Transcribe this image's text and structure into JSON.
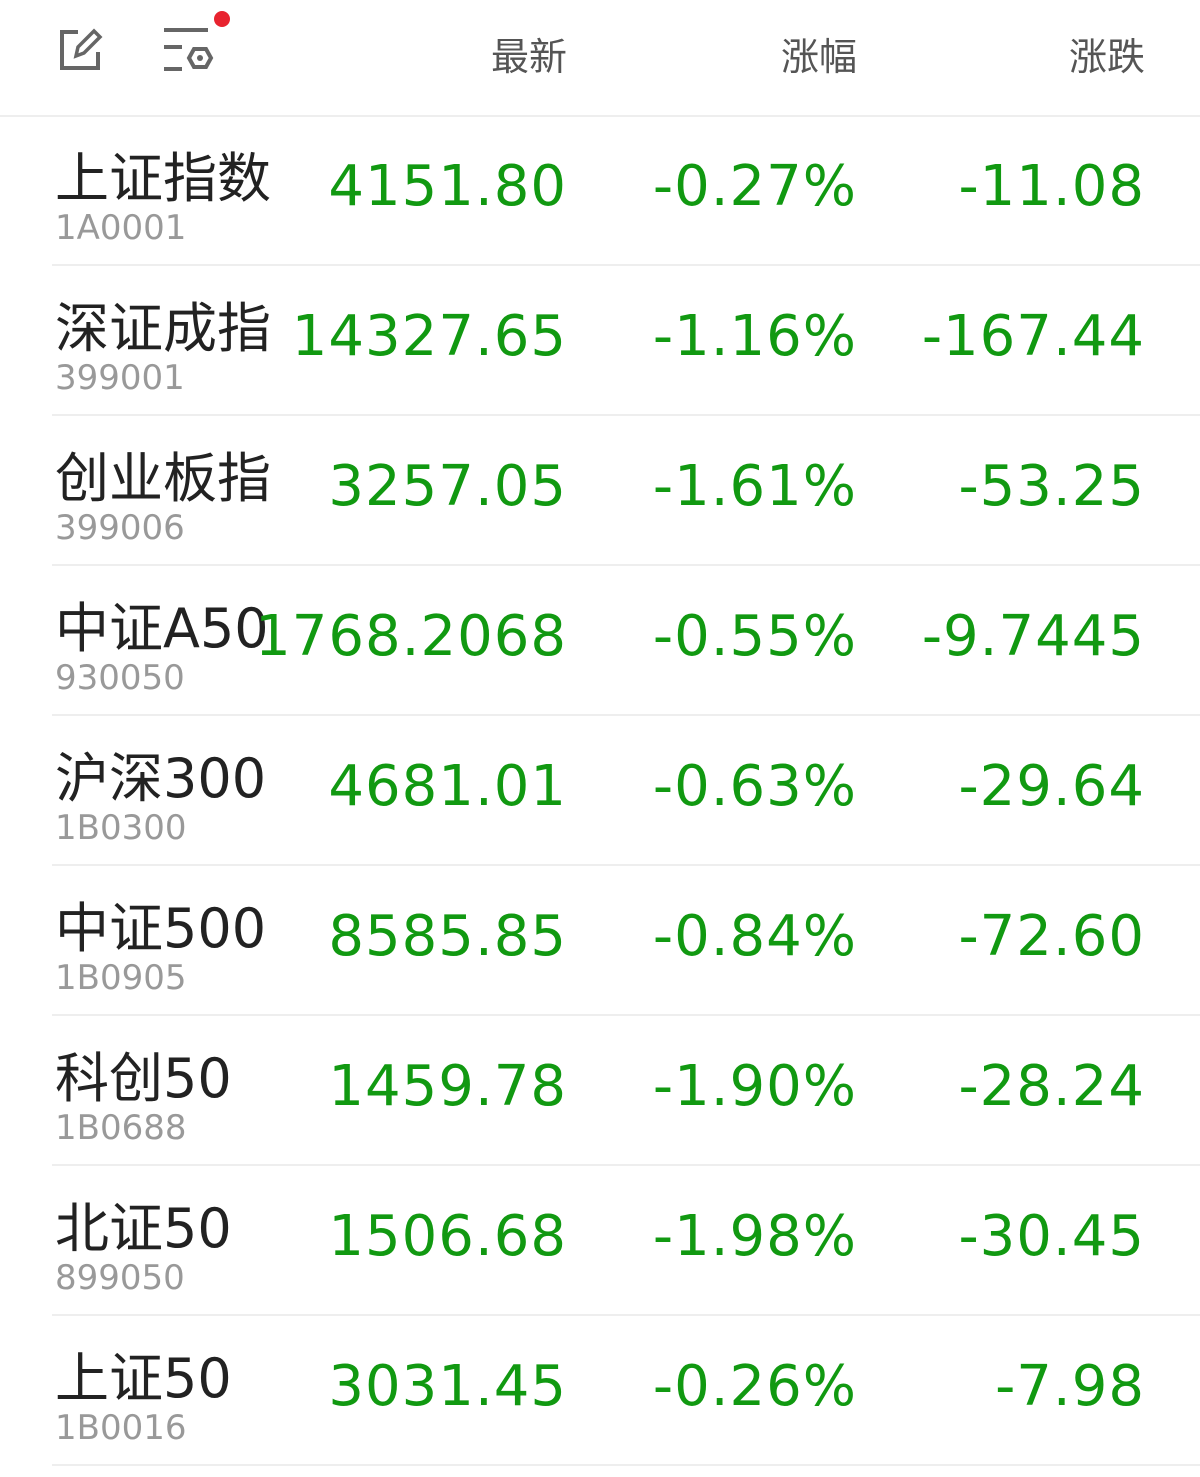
{
  "header": {
    "icons": [
      "edit-icon",
      "filter-settings-icon"
    ],
    "notification_dot_color": "#e8232f",
    "columns": [
      "最新",
      "涨幅",
      "涨跌"
    ]
  },
  "colors": {
    "down": "#119911"
  },
  "rows": [
    {
      "name": "上证指数",
      "code": "1A0001",
      "price": "4151.80",
      "pct": "-0.27%",
      "chg": "-11.08"
    },
    {
      "name": "深证成指",
      "code": "399001",
      "price": "14327.65",
      "pct": "-1.16%",
      "chg": "-167.44"
    },
    {
      "name": "创业板指",
      "code": "399006",
      "price": "3257.05",
      "pct": "-1.61%",
      "chg": "-53.25"
    },
    {
      "name": "中证A50",
      "code": "930050",
      "price": "1768.2068",
      "pct": "-0.55%",
      "chg": "-9.7445"
    },
    {
      "name": "沪深300",
      "code": "1B0300",
      "price": "4681.01",
      "pct": "-0.63%",
      "chg": "-29.64"
    },
    {
      "name": "中证500",
      "code": "1B0905",
      "price": "8585.85",
      "pct": "-0.84%",
      "chg": "-72.60"
    },
    {
      "name": "科创50",
      "code": "1B0688",
      "price": "1459.78",
      "pct": "-1.90%",
      "chg": "-28.24"
    },
    {
      "name": "北证50",
      "code": "899050",
      "price": "1506.68",
      "pct": "-1.98%",
      "chg": "-30.45"
    },
    {
      "name": "上证50",
      "code": "1B0016",
      "price": "3031.45",
      "pct": "-0.26%",
      "chg": "-7.98"
    }
  ]
}
